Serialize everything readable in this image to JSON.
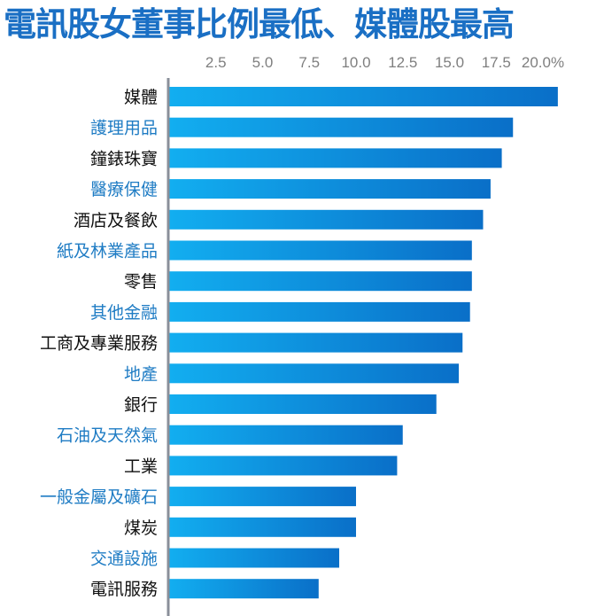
{
  "title": "電訊股女董事比例最低、媒體股最高",
  "colors": {
    "title": "#1a6fc4",
    "bar_light": "#12aef0",
    "bar_dark": "#0a6fc8",
    "label_dark": "#111111",
    "label_blue": "#1f7cc4",
    "axis_line": "#8a8f99",
    "tick_text": "#7f7f7f"
  },
  "chart_data": {
    "type": "bar",
    "orientation": "horizontal",
    "xlim": [
      0,
      20.5
    ],
    "ticks": [
      "2.5",
      "5.0",
      "7.5",
      "10.0",
      "12.5",
      "15.0",
      "17.5",
      "20.0%"
    ],
    "tick_values": [
      2.5,
      5.0,
      7.5,
      10.0,
      12.5,
      15.0,
      17.5,
      20.0
    ],
    "axis_position": "top",
    "grid": false,
    "categories": [
      "媒體",
      "護理用品",
      "鐘錶珠寶",
      "醫療保健",
      "酒店及餐飲",
      "紙及林業產品",
      "零售",
      "其他金融",
      "工商及專業服務",
      "地產",
      "銀行",
      "石油及天然氣",
      "工業",
      "一般金屬及礦石",
      "煤炭",
      "交通設施",
      "電訊服務"
    ],
    "values": [
      20.8,
      18.4,
      17.8,
      17.2,
      16.8,
      16.2,
      16.2,
      16.1,
      15.7,
      15.5,
      14.3,
      12.5,
      12.2,
      10.0,
      10.0,
      9.1,
      8.0
    ]
  }
}
